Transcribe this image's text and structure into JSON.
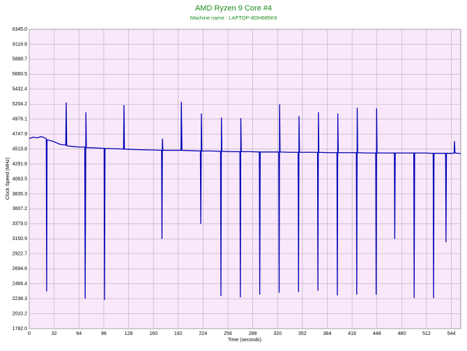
{
  "chart_data": {
    "type": "line",
    "title": "AMD Ryzen 9 Core #4",
    "subtitle": "Machine name : LAPTOP-8OH685K9",
    "xlabel": "Time (seconds)",
    "ylabel": "Clock Speed (MHz)",
    "xlim": [
      0,
      556
    ],
    "ylim": [
      1782,
      6345
    ],
    "xticks": [
      0,
      32,
      64,
      96,
      128,
      160,
      192,
      224,
      256,
      288,
      320,
      352,
      384,
      416,
      448,
      480,
      512,
      544
    ],
    "yticks": [
      {
        "value": 1782,
        "label": "1782.0"
      },
      {
        "value": 2010.2,
        "label": "2010.2"
      },
      {
        "value": 2238.3,
        "label": "2238.3"
      },
      {
        "value": 2466.4,
        "label": "2466.4"
      },
      {
        "value": 2694.6,
        "label": "2694.6"
      },
      {
        "value": 2922.7,
        "label": "2922.7"
      },
      {
        "value": 3150.9,
        "label": "3150.9"
      },
      {
        "value": 3379,
        "label": "3379.0"
      },
      {
        "value": 3607.2,
        "label": "3607.2"
      },
      {
        "value": 3835.3,
        "label": "3835.3"
      },
      {
        "value": 4063.5,
        "label": "4063.5"
      },
      {
        "value": 4291.6,
        "label": "4291.6"
      },
      {
        "value": 4519.8,
        "label": "4519.8"
      },
      {
        "value": 4747.9,
        "label": "4747.9"
      },
      {
        "value": 4976.1,
        "label": "4976.1"
      },
      {
        "value": 5204.2,
        "label": "5204.2"
      },
      {
        "value": 5432.4,
        "label": "5432.4"
      },
      {
        "value": 5660.5,
        "label": "5660.5"
      },
      {
        "value": 5888.7,
        "label": "5888.7"
      },
      {
        "value": 6116.8,
        "label": "6116.8"
      },
      {
        "value": 6345,
        "label": "6345.0"
      }
    ],
    "grid": true,
    "series": [
      {
        "color": "#0000b4",
        "x": [
          0,
          5,
          10,
          15,
          20,
          21.9,
          22.4,
          22.9,
          30,
          40,
          47,
          47.6,
          48.2,
          55,
          64,
          71.5,
          72,
          73,
          73.6,
          80,
          96.5,
          97,
          97.6,
          110,
          121.5,
          122,
          122.6,
          140,
          160,
          170.5,
          171,
          171.6,
          172.2,
          185,
          195.5,
          196,
          196.8,
          210,
          220.5,
          221,
          221.8,
          222.4,
          235,
          246.5,
          247,
          247.6,
          248.2,
          260,
          271.5,
          272,
          272.6,
          273.2,
          285,
          296.5,
          297,
          297.6,
          310,
          321.5,
          322,
          322.6,
          323.2,
          335,
          346.5,
          347,
          347.6,
          348.2,
          360,
          371.5,
          372,
          372.6,
          373.2,
          385,
          396.5,
          397,
          397.6,
          398.2,
          410,
          421.5,
          422,
          422.6,
          423.2,
          435,
          446.5,
          447,
          447.6,
          448.2,
          460,
          470.5,
          471,
          471.6,
          485,
          495.5,
          496,
          496.6,
          510,
          520.5,
          521,
          521.6,
          530,
          536.5,
          537,
          537.6,
          545,
          547.5,
          548,
          548.6,
          556
        ],
        "values": [
          4680,
          4700,
          4690,
          4710,
          4690,
          4680,
          2350,
          4660,
          4640,
          4590,
          4580,
          5230,
          4570,
          4560,
          4550,
          4550,
          2240,
          5080,
          4540,
          4540,
          4530,
          2220,
          4530,
          4525,
          4520,
          5190,
          4520,
          4510,
          4505,
          4500,
          3150,
          4680,
          4500,
          4500,
          4500,
          5240,
          4500,
          4495,
          4490,
          3380,
          5060,
          4490,
          4490,
          4485,
          2280,
          5000,
          4485,
          4480,
          4480,
          2260,
          4990,
          4480,
          4480,
          4475,
          2300,
          4475,
          4475,
          4475,
          2330,
          5200,
          4475,
          4470,
          4470,
          2340,
          5020,
          4470,
          4470,
          4470,
          2360,
          5080,
          4470,
          4465,
          4465,
          2290,
          5060,
          4465,
          4465,
          4465,
          2300,
          5150,
          4465,
          4460,
          4460,
          2300,
          5140,
          4460,
          4460,
          4460,
          3150,
          4460,
          4460,
          4460,
          2250,
          4460,
          4460,
          4455,
          2250,
          4455,
          4455,
          4455,
          3100,
          4455,
          4455,
          4460,
          4640,
          4460,
          4450
        ]
      }
    ]
  }
}
